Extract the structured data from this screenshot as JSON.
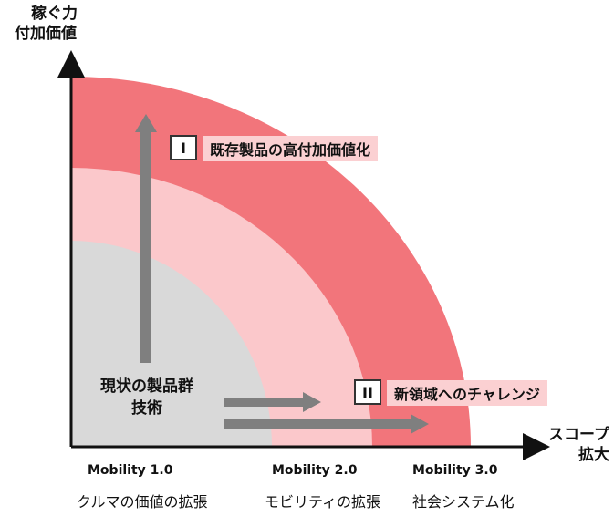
{
  "axes": {
    "y_label_line1": "稼ぐ力",
    "y_label_line2": "付加価値",
    "x_label_line1": "スコープ",
    "x_label_line2": "拡大"
  },
  "core": {
    "line1": "現状の製品群",
    "line2": "技術"
  },
  "strategies": [
    {
      "numeral": "I",
      "label": "既存製品の高付加価値化"
    },
    {
      "numeral": "II",
      "label": "新領域へのチャレンジ"
    }
  ],
  "stages": [
    {
      "version": "Mobility 1.0",
      "scope": "クルマの価値の拡張"
    },
    {
      "version": "Mobility 2.0",
      "scope": "モビリティの拡張"
    },
    {
      "version": "Mobility 3.0",
      "scope": "社会システム化"
    }
  ],
  "colors": {
    "inner": "#d9d9d9",
    "middle": "#fbc8cb",
    "outer": "#f2757b",
    "arrow": "#7f7f7f",
    "axis": "#111111"
  }
}
